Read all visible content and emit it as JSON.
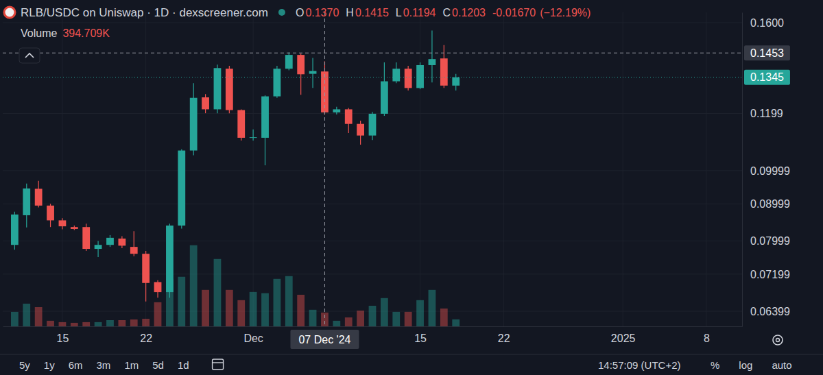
{
  "chart_data": {
    "type": "candlestick",
    "title": "RLB/USDC on Uniswap · 1D · dexscreener.com",
    "x": [
      "2024-11-11",
      "2024-11-12",
      "2024-11-13",
      "2024-11-14",
      "2024-11-15",
      "2024-11-16",
      "2024-11-17",
      "2024-11-18",
      "2024-11-19",
      "2024-11-20",
      "2024-11-21",
      "2024-11-22",
      "2024-11-23",
      "2024-11-24",
      "2024-11-25",
      "2024-11-26",
      "2024-11-27",
      "2024-11-28",
      "2024-11-29",
      "2024-11-30",
      "2024-12-01",
      "2024-12-02",
      "2024-12-03",
      "2024-12-04",
      "2024-12-05",
      "2024-12-06",
      "2024-12-07",
      "2024-12-08",
      "2024-12-09",
      "2024-12-10",
      "2024-12-11",
      "2024-12-12",
      "2024-12-13",
      "2024-12-14",
      "2024-12-15",
      "2024-12-16",
      "2024-12-17",
      "2024-12-18"
    ],
    "open": [
      0.079,
      0.0868,
      0.0944,
      0.0895,
      0.0854,
      0.0836,
      0.0836,
      0.078,
      0.079,
      0.0806,
      0.0785,
      0.0768,
      0.0702,
      0.068,
      0.084,
      0.1066,
      0.1262,
      0.1215,
      0.1382,
      0.1212,
      0.111,
      0.111,
      0.1266,
      0.1382,
      0.1444,
      0.136,
      0.137,
      0.1203,
      0.1215,
      0.116,
      0.1118,
      0.1198,
      0.1328,
      0.1382,
      0.13,
      0.1398,
      0.1428,
      0.131
    ],
    "high": [
      0.0878,
      0.096,
      0.0968,
      0.09,
      0.086,
      0.084,
      0.0845,
      0.08,
      0.0815,
      0.0812,
      0.0825,
      0.0775,
      0.0706,
      0.0845,
      0.107,
      0.132,
      0.1275,
      0.14,
      0.1395,
      0.1215,
      0.114,
      0.127,
      0.1395,
      0.1455,
      0.145,
      0.143,
      0.1415,
      0.1225,
      0.122,
      0.1172,
      0.1205,
      0.141,
      0.141,
      0.1395,
      0.141,
      0.156,
      0.149,
      0.136
    ],
    "low": [
      0.0778,
      0.0835,
      0.089,
      0.0836,
      0.083,
      0.0828,
      0.0775,
      0.076,
      0.0785,
      0.0782,
      0.0762,
      0.066,
      0.0668,
      0.0668,
      0.0832,
      0.105,
      0.12,
      0.12,
      0.12,
      0.11,
      0.11,
      0.1017,
      0.126,
      0.1375,
      0.1272,
      0.13,
      0.1194,
      0.1195,
      0.1127,
      0.1086,
      0.1102,
      0.119,
      0.132,
      0.129,
      0.1295,
      0.1323,
      0.13,
      0.129
    ],
    "close": [
      0.087,
      0.0945,
      0.0895,
      0.0854,
      0.0838,
      0.0831,
      0.078,
      0.079,
      0.0808,
      0.0788,
      0.0768,
      0.07,
      0.068,
      0.084,
      0.1066,
      0.126,
      0.1215,
      0.1385,
      0.1212,
      0.111,
      0.1112,
      0.1266,
      0.1382,
      0.1444,
      0.1358,
      0.1372,
      0.1203,
      0.1215,
      0.116,
      0.1118,
      0.1198,
      0.1328,
      0.1382,
      0.13,
      0.1398,
      0.1425,
      0.131,
      0.1345
    ],
    "series": [
      {
        "name": "Volume",
        "type": "bar",
        "axis": "y2",
        "values": [
          414,
          650,
          550,
          160,
          120,
          100,
          120,
          120,
          177,
          177,
          197,
          217,
          690,
          1360,
          1420,
          2325,
          1045,
          1930,
          1045,
          750,
          985,
          950,
          1360,
          1440,
          905,
          475,
          394.709,
          160,
          255,
          450,
          590,
          810,
          415,
          415,
          750,
          1045,
          510,
          200
        ]
      }
    ],
    "xlim": [
      "2024-11-10",
      "2025-01-11"
    ],
    "xticks": [
      {
        "value": "2024-11-15",
        "label": "15"
      },
      {
        "value": "2024-11-22",
        "label": "22"
      },
      {
        "value": "2024-12-01",
        "label": "Dec"
      },
      {
        "value": "2024-12-15",
        "label": "15"
      },
      {
        "value": "2024-12-22",
        "label": "22"
      },
      {
        "value": "2025-01-01",
        "label": "2025"
      },
      {
        "value": "2025-01-08",
        "label": "8"
      }
    ],
    "ylim": [
      0.061,
      0.1653
    ],
    "yticks": [
      {
        "value": 0.16,
        "label": "0.1600"
      },
      0.1199,
      0.09999,
      0.08999,
      0.07999,
      0.07199,
      0.06399
    ],
    "y2lim": [
      0,
      9000
    ],
    "y2ticks": [],
    "log": "y",
    "grid": true,
    "price_line": {
      "value": 0.1345,
      "label": "0.1345"
    },
    "crosshair": {
      "x": "2024-12-07",
      "y": 0.1453,
      "x_label": "07 Dec '24",
      "y_label": "0.1453"
    }
  },
  "page": {
    "ohlc": [
      {
        "label": "O",
        "value": "0.1370"
      },
      {
        "label": "H",
        "value": "0.1415"
      },
      {
        "label": "L",
        "value": "0.1194"
      },
      {
        "label": "C",
        "value": "0.1203"
      }
    ],
    "change": "-0.01670",
    "change_pct": "(−12.19%)",
    "volume_value": "394.709K",
    "toolbar": {
      "ranges": [
        "5y",
        "1y",
        "6m",
        "3m",
        "1m",
        "5d",
        "1d"
      ],
      "time": "14:57:09 (UTC+2)",
      "options": [
        "%",
        "log",
        "auto"
      ]
    }
  }
}
